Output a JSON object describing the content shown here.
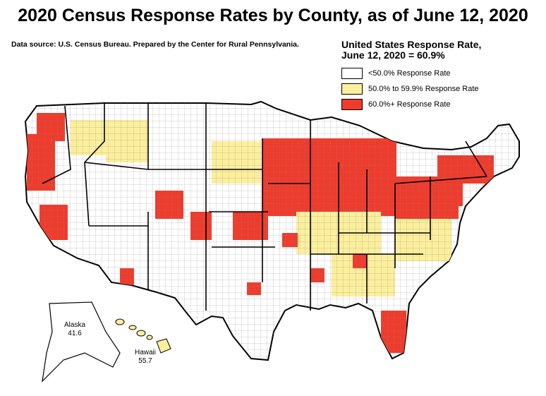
{
  "title": "2020 Census Response Rates by County, as of June 12, 2020",
  "source": "Data source: U.S. Census Bureau. Prepared by the Center for Rural Pennsylvania.",
  "legend": {
    "rate_title_line1": "United States Response Rate,",
    "rate_title_line2": "June 12, 2020  = 60.9%",
    "items": [
      {
        "label": "<50.0% Response Rate",
        "color": "#ffffff"
      },
      {
        "label": "50.0% to 59.9% Response Rate",
        "color": "#fcef9c"
      },
      {
        "label": "60.0%+ Response Rate",
        "color": "#ef3b2c"
      }
    ]
  },
  "insets": {
    "alaska": {
      "name": "Alaska",
      "value": "41.6"
    },
    "hawaii": {
      "name": "Hawaii",
      "value": "55.7"
    }
  },
  "colors": {
    "low": "#ffffff",
    "mid": "#fcef9c",
    "high": "#ef3b2c",
    "border": "#000000"
  }
}
